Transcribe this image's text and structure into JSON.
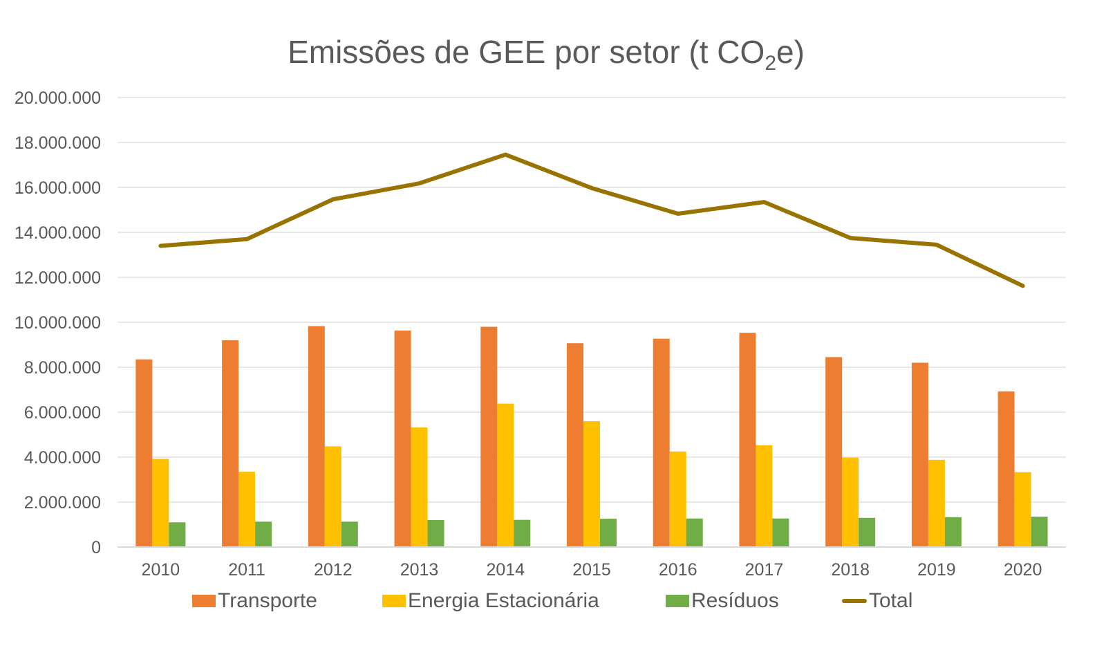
{
  "chart_data": {
    "type": "bar",
    "title_main": "Emissões de GEE por setor (t CO",
    "title_sub": "2",
    "title_end": "e)",
    "categories": [
      "2010",
      "2011",
      "2012",
      "2013",
      "2014",
      "2015",
      "2016",
      "2017",
      "2018",
      "2019",
      "2020"
    ],
    "ylim": [
      0,
      20000000
    ],
    "yticks": [
      0,
      2000000,
      4000000,
      6000000,
      8000000,
      10000000,
      12000000,
      14000000,
      16000000,
      18000000,
      20000000
    ],
    "ytick_labels": [
      "0",
      "2.000.000",
      "4.000.000",
      "6.000.000",
      "8.000.000",
      "10.000.000",
      "12.000.000",
      "14.000.000",
      "16.000.000",
      "18.000.000",
      "20.000.000"
    ],
    "grid": true,
    "legend_position": "bottom",
    "series": [
      {
        "name": "Transporte",
        "kind": "bar",
        "color": "#ED7D31",
        "values": [
          8350000,
          9200000,
          9830000,
          9630000,
          9800000,
          9070000,
          9270000,
          9530000,
          8450000,
          8200000,
          6920000
        ]
      },
      {
        "name": "Energia Estacionária",
        "kind": "bar",
        "color": "#FFC000",
        "values": [
          3920000,
          3350000,
          4480000,
          5320000,
          6380000,
          5600000,
          4250000,
          4530000,
          3980000,
          3880000,
          3330000
        ]
      },
      {
        "name": "Resíduos",
        "kind": "bar",
        "color": "#70AD47",
        "values": [
          1100000,
          1130000,
          1130000,
          1200000,
          1210000,
          1260000,
          1270000,
          1270000,
          1300000,
          1330000,
          1350000
        ]
      },
      {
        "name": "Total",
        "kind": "line",
        "color": "#997300",
        "values": [
          13400000,
          13700000,
          15470000,
          16180000,
          17460000,
          15970000,
          14830000,
          15350000,
          13750000,
          13450000,
          11620000
        ]
      }
    ]
  }
}
